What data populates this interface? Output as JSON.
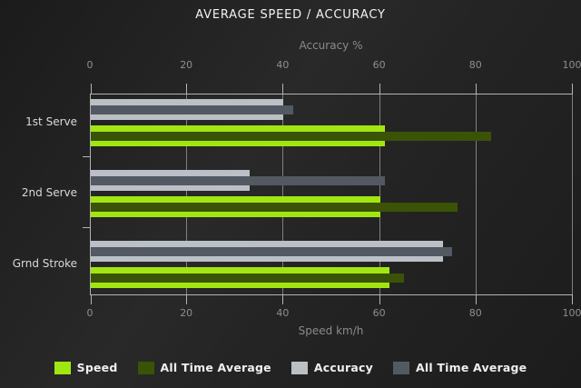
{
  "title": "AVERAGE SPEED / ACCURACY",
  "chart_data": {
    "type": "bar",
    "orientation": "horizontal",
    "title": "AVERAGE SPEED / ACCURACY",
    "grid": true,
    "legend_position": "bottom",
    "categories": [
      "1st Serve",
      "2nd Serve",
      "Grnd Stroke"
    ],
    "axes": {
      "top": {
        "label": "Accuracy %",
        "range": [
          0,
          100
        ],
        "ticks": [
          0,
          20,
          40,
          60,
          80,
          100
        ]
      },
      "bottom": {
        "label": "Speed km/h",
        "range": [
          0,
          100
        ],
        "ticks": [
          0,
          20,
          40,
          60,
          80,
          100
        ]
      }
    },
    "series": [
      {
        "key": "speed",
        "name": "Speed",
        "axis": "bottom",
        "color": "#a2e611",
        "values": [
          61,
          60,
          62
        ]
      },
      {
        "key": "speed-all-time-average",
        "name": "All Time Average",
        "axis": "bottom",
        "color": "#3a5306",
        "values": [
          83,
          76,
          65
        ]
      },
      {
        "key": "accuracy",
        "name": "Accuracy",
        "axis": "top",
        "color": "#bac0c6",
        "values": [
          40,
          33,
          73
        ]
      },
      {
        "key": "accuracy-all-time-average",
        "name": "All Time Average",
        "axis": "top",
        "color": "#535962",
        "values": [
          42,
          61,
          75
        ]
      }
    ],
    "legend": [
      {
        "key": "speed",
        "label": "Speed",
        "color": "#a2e611"
      },
      {
        "key": "speed-all-time-average",
        "label": "All Time Average",
        "color": "#3a5306"
      },
      {
        "key": "accuracy",
        "label": "Accuracy",
        "color": "#bac0c6"
      },
      {
        "key": "accuracy-all-time-average",
        "label": "All Time Average",
        "color": "#535962"
      }
    ]
  },
  "colors": {
    "background": "#222222",
    "title_text": "#f2f2f2",
    "axis_text": "#8a8a8a",
    "tick_text": "#8f8f8f",
    "category_text": "#d9d9d9",
    "axis_line": "#b3b3b3",
    "gridline": "#8f8f8f",
    "legend_text": "#efefef"
  }
}
